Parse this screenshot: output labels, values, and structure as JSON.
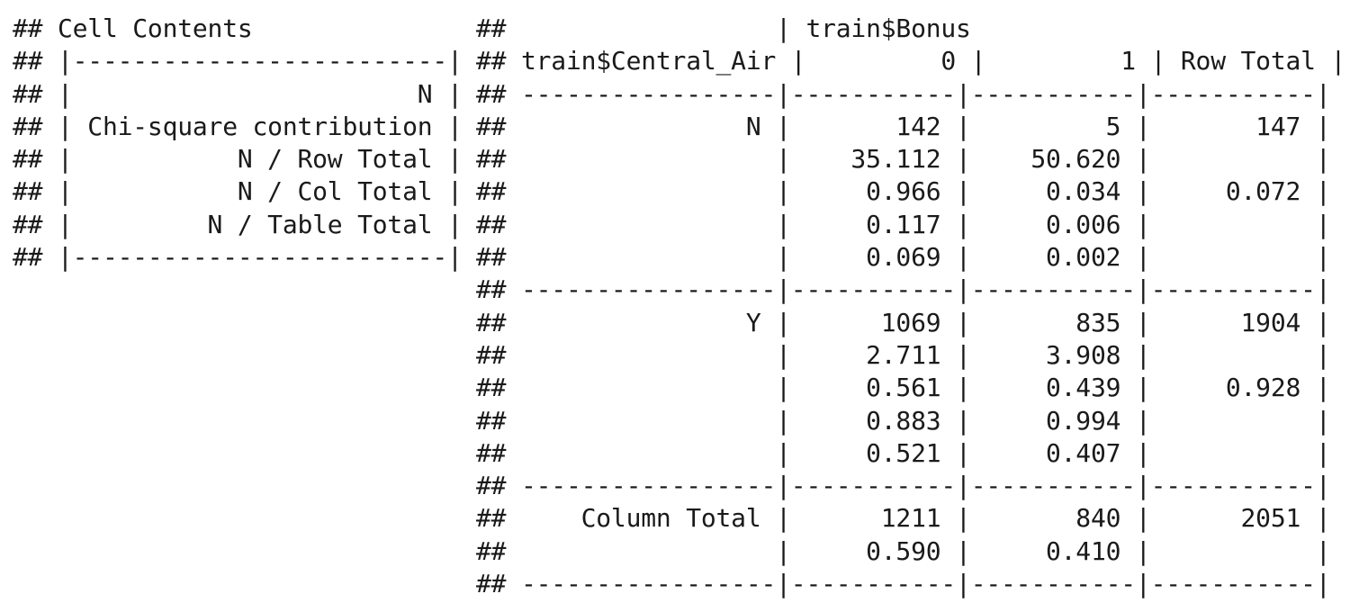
{
  "legend": {
    "lines": [
      "## Cell Contents",
      "## |-------------------------|",
      "## |                       N |",
      "## | Chi-square contribution |",
      "## |           N / Row Total |",
      "## |           N / Col Total |",
      "## |         N / Table Total |",
      "## |-------------------------|"
    ]
  },
  "table": {
    "lines": [
      "##                  | train$Bonus",
      "## train$Central_Air |         0 |         1 | Row Total |",
      "## -----------------|-----------|-----------|-----------|",
      "##                N |       142 |         5 |       147 |",
      "##                  |    35.112 |    50.620 |           |",
      "##                  |     0.966 |     0.034 |     0.072 |",
      "##                  |     0.117 |     0.006 |           |",
      "##                  |     0.069 |     0.002 |           |",
      "## -----------------|-----------|-----------|-----------|",
      "##                Y |      1069 |       835 |      1904 |",
      "##                  |     2.711 |     3.908 |           |",
      "##                  |     0.561 |     0.439 |     0.928 |",
      "##                  |     0.883 |     0.994 |           |",
      "##                  |     0.521 |     0.407 |           |",
      "## -----------------|-----------|-----------|-----------|",
      "##     Column Total |      1211 |       840 |      2051 |",
      "##                  |     0.590 |     0.410 |           |",
      "## -----------------|-----------|-----------|-----------|"
    ]
  }
}
